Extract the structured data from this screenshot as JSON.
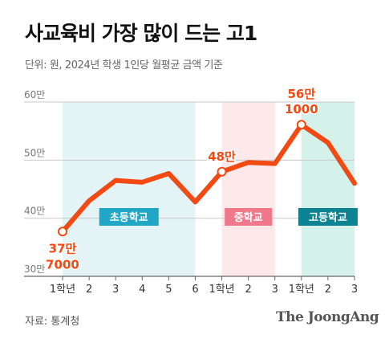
{
  "header": {
    "title": "사교육비 가장 많이 드는 고1",
    "subtitle": "단위: 원, 2024년 학생 1인당 월평균 금액 기준"
  },
  "footer": {
    "source": "자료: 통계청",
    "brand": "The JoongAng"
  },
  "colors": {
    "line": "#f24a12",
    "elementary_band": "#e3f3f6",
    "middle_band": "#fde8ea",
    "high_band": "#d4f1ea",
    "elementary_label": "#22a6c6",
    "middle_label": "#f1788b",
    "high_label": "#0b8392"
  },
  "chart_data": {
    "type": "line",
    "categories": [
      "1학년",
      "2",
      "3",
      "4",
      "5",
      "6",
      "1학년",
      "2",
      "3",
      "1학년",
      "2",
      "3"
    ],
    "values": [
      377000,
      430000,
      465000,
      462000,
      477000,
      428000,
      480000,
      496000,
      494000,
      561000,
      530000,
      460000
    ],
    "ylim": [
      300000,
      600000
    ],
    "yticks": [
      {
        "value": 300000,
        "label": "30만"
      },
      {
        "value": 400000,
        "label": "40만"
      },
      {
        "value": 500000,
        "label": "50만"
      },
      {
        "value": 600000,
        "label": "60만"
      }
    ],
    "groups": [
      {
        "label": "초등학교",
        "start": 0,
        "end": 5
      },
      {
        "label": "중학교",
        "start": 6,
        "end": 8
      },
      {
        "label": "고등학교",
        "start": 9,
        "end": 11
      }
    ],
    "annotations": [
      {
        "index": 0,
        "lines": [
          "37만",
          "7000"
        ],
        "placement": "below"
      },
      {
        "index": 6,
        "lines": [
          "48만"
        ],
        "placement": "above"
      },
      {
        "index": 9,
        "lines": [
          "56만",
          "1000"
        ],
        "placement": "above"
      }
    ],
    "grid": true
  }
}
